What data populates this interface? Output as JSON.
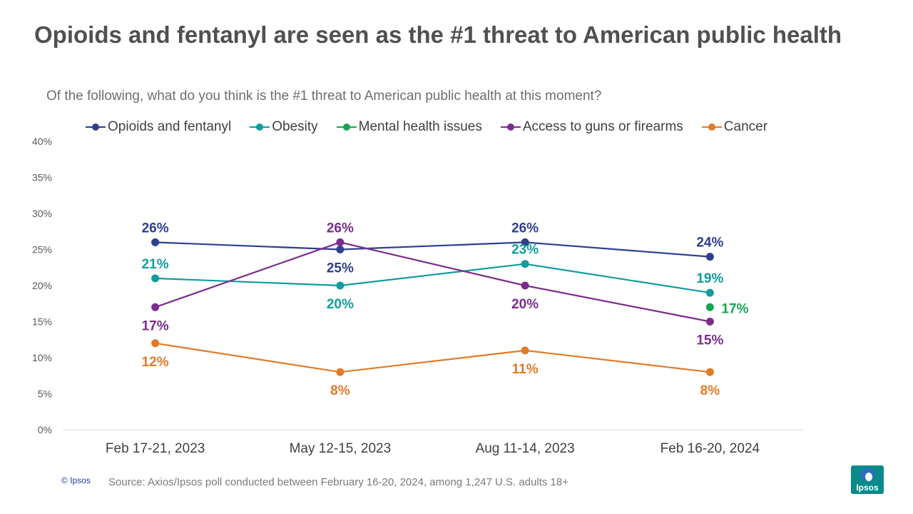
{
  "header": {
    "title": "Opioids and fentanyl are seen as the #1 threat to American public health",
    "subtitle": "Of the following, what do you think is the #1 threat to American public health at this moment?"
  },
  "footer": {
    "copyright": "© Ipsos",
    "source": "Source: Axios/Ipsos poll conducted between February 16-20, 2024, among 1,247 U.S. adults 18+",
    "logo_text": "Ipsos"
  },
  "chart_data": {
    "type": "line",
    "title": "",
    "xlabel": "",
    "ylabel": "",
    "ylim": [
      0,
      40
    ],
    "y_ticks": [
      "0%",
      "5%",
      "10%",
      "15%",
      "20%",
      "25%",
      "30%",
      "35%",
      "40%"
    ],
    "categories": [
      "Feb 17-21, 2023",
      "May 12-15, 2023",
      "Aug 11-14, 2023",
      "Feb 16-20, 2024"
    ],
    "grid": false,
    "legend_position": "top",
    "series": [
      {
        "name": "Opioids and fentanyl",
        "color": "#2e3f8f",
        "values": [
          26,
          25,
          26,
          24
        ],
        "labels": [
          "26%",
          "25%",
          "26%",
          "24%"
        ],
        "label_pos": [
          "above",
          "below",
          "above",
          "above"
        ]
      },
      {
        "name": "Obesity",
        "color": "#129c9c",
        "values": [
          21,
          20,
          23,
          19
        ],
        "labels": [
          "21%",
          "20%",
          "23%",
          "19%"
        ],
        "label_pos": [
          "above",
          "below",
          "above",
          "above"
        ]
      },
      {
        "name": "Mental health issues",
        "color": "#14a651",
        "values": [
          null,
          null,
          null,
          17
        ],
        "labels": [
          null,
          null,
          null,
          "17%"
        ],
        "label_pos": [
          null,
          null,
          null,
          "right"
        ]
      },
      {
        "name": "Access to guns or firearms",
        "color": "#7b2d8e",
        "values": [
          17,
          26,
          20,
          15
        ],
        "labels": [
          "17%",
          "26%",
          "20%",
          "15%"
        ],
        "label_pos": [
          "below",
          "above",
          "below",
          "below"
        ]
      },
      {
        "name": "Cancer",
        "color": "#e07b28",
        "values": [
          12,
          8,
          11,
          8
        ],
        "labels": [
          "12%",
          "8%",
          "11%",
          "8%"
        ],
        "label_pos": [
          "below",
          "below",
          "below",
          "below"
        ]
      }
    ]
  }
}
